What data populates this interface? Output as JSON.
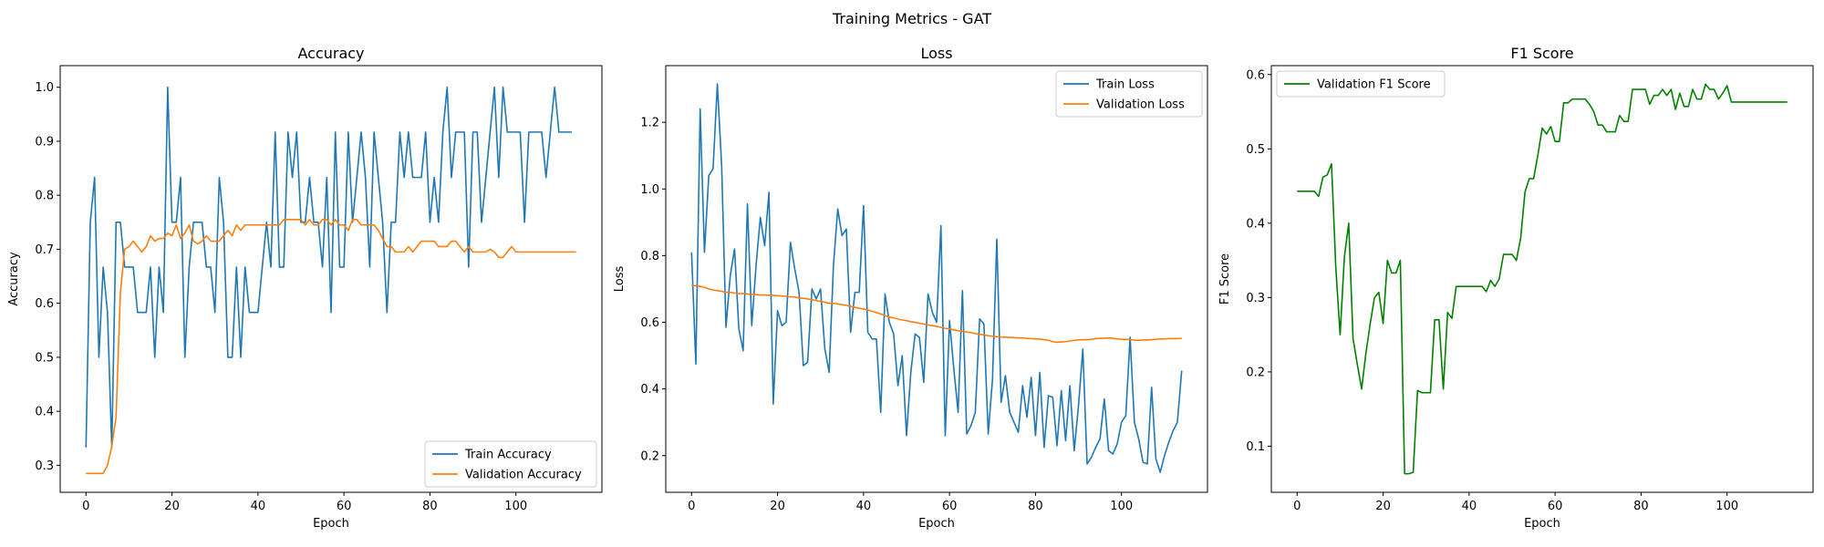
{
  "figure": {
    "suptitle": "Training Metrics - GAT"
  },
  "chart_data": [
    {
      "type": "line",
      "title": "Accuracy",
      "xlabel": "Epoch",
      "ylabel": "Accuracy",
      "xlim": [
        -6,
        120
      ],
      "ylim": [
        0.25,
        1.04
      ],
      "xticks": [
        0,
        20,
        40,
        60,
        80,
        100
      ],
      "yticks": [
        0.3,
        0.4,
        0.5,
        0.6,
        0.7,
        0.8,
        0.9,
        1.0
      ],
      "ytick_labels": [
        "0.3",
        "0.4",
        "0.5",
        "0.6",
        "0.7",
        "0.8",
        "0.9",
        "1.0"
      ],
      "legend": "lower-right",
      "grid": false,
      "series": [
        {
          "name": "Train Accuracy",
          "color": "#1f77b4",
          "values": [
            0.333,
            0.75,
            0.833,
            0.5,
            0.667,
            0.583,
            0.333,
            0.75,
            0.75,
            0.667,
            0.667,
            0.667,
            0.583,
            0.583,
            0.583,
            0.667,
            0.5,
            0.667,
            0.583,
            1.0,
            0.75,
            0.75,
            0.833,
            0.5,
            0.667,
            0.75,
            0.75,
            0.75,
            0.667,
            0.667,
            0.583,
            0.833,
            0.75,
            0.5,
            0.5,
            0.667,
            0.5,
            0.667,
            0.583,
            0.583,
            0.583,
            0.667,
            0.75,
            0.667,
            0.917,
            0.667,
            0.667,
            0.917,
            0.833,
            0.917,
            0.75,
            0.75,
            0.833,
            0.75,
            0.75,
            0.667,
            0.833,
            0.583,
            0.917,
            0.667,
            0.667,
            0.917,
            0.75,
            0.833,
            0.917,
            0.833,
            0.667,
            0.917,
            0.833,
            0.75,
            0.583,
            0.75,
            0.75,
            0.917,
            0.833,
            0.917,
            0.833,
            0.833,
            0.833,
            0.917,
            0.75,
            0.833,
            0.75,
            0.917,
            1.0,
            0.833,
            0.917,
            0.917,
            0.917,
            0.667,
            0.917,
            0.917,
            0.75,
            0.833,
            0.917,
            1.0,
            0.833,
            1.0,
            0.917,
            0.917,
            0.917,
            0.917,
            0.75,
            0.917,
            0.917,
            0.917,
            0.917,
            0.833,
            0.917,
            1.0,
            0.917,
            0.917,
            0.917,
            0.917
          ]
        },
        {
          "name": "Validation Accuracy",
          "color": "#ff7f0e",
          "values": [
            0.285,
            0.285,
            0.285,
            0.285,
            0.285,
            0.3,
            0.335,
            0.39,
            0.62,
            0.7,
            0.705,
            0.715,
            0.705,
            0.695,
            0.705,
            0.725,
            0.715,
            0.72,
            0.72,
            0.73,
            0.725,
            0.745,
            0.72,
            0.73,
            0.745,
            0.715,
            0.71,
            0.715,
            0.725,
            0.715,
            0.715,
            0.715,
            0.725,
            0.735,
            0.725,
            0.745,
            0.735,
            0.745,
            0.745,
            0.745,
            0.745,
            0.745,
            0.745,
            0.745,
            0.745,
            0.745,
            0.755,
            0.755,
            0.755,
            0.755,
            0.755,
            0.745,
            0.755,
            0.745,
            0.745,
            0.755,
            0.755,
            0.745,
            0.755,
            0.745,
            0.745,
            0.735,
            0.755,
            0.755,
            0.745,
            0.745,
            0.745,
            0.745,
            0.735,
            0.72,
            0.705,
            0.705,
            0.695,
            0.695,
            0.695,
            0.705,
            0.695,
            0.705,
            0.715,
            0.715,
            0.715,
            0.715,
            0.705,
            0.705,
            0.705,
            0.715,
            0.715,
            0.705,
            0.695,
            0.705,
            0.695,
            0.695,
            0.695,
            0.695,
            0.7,
            0.695,
            0.685,
            0.685,
            0.695,
            0.705,
            0.695,
            0.695,
            0.695,
            0.695,
            0.695,
            0.695,
            0.695,
            0.695,
            0.695,
            0.695,
            0.695,
            0.695,
            0.695,
            0.695,
            0.695
          ]
        }
      ]
    },
    {
      "type": "line",
      "title": "Loss",
      "xlabel": "Epoch",
      "ylabel": "Loss",
      "xlim": [
        -6,
        120
      ],
      "ylim": [
        0.09,
        1.37
      ],
      "xticks": [
        0,
        20,
        40,
        60,
        80,
        100
      ],
      "yticks": [
        0.2,
        0.4,
        0.6,
        0.8,
        1.0,
        1.2
      ],
      "ytick_labels": [
        "0.2",
        "0.4",
        "0.6",
        "0.8",
        "1.0",
        "1.2"
      ],
      "legend": "top-right",
      "grid": false,
      "series": [
        {
          "name": "Train Loss",
          "color": "#1f77b4",
          "values": [
            0.81,
            0.475,
            1.24,
            0.81,
            1.04,
            1.06,
            1.315,
            1.07,
            0.585,
            0.74,
            0.82,
            0.58,
            0.515,
            0.955,
            0.59,
            0.77,
            0.915,
            0.83,
            0.99,
            0.355,
            0.635,
            0.59,
            0.6,
            0.84,
            0.76,
            0.69,
            0.47,
            0.48,
            0.7,
            0.67,
            0.7,
            0.52,
            0.45,
            0.77,
            0.94,
            0.86,
            0.88,
            0.57,
            0.69,
            0.69,
            0.95,
            0.57,
            0.55,
            0.55,
            0.33,
            0.685,
            0.6,
            0.565,
            0.41,
            0.5,
            0.26,
            0.45,
            0.565,
            0.555,
            0.42,
            0.685,
            0.63,
            0.6,
            0.89,
            0.26,
            0.605,
            0.46,
            0.33,
            0.695,
            0.265,
            0.29,
            0.33,
            0.61,
            0.595,
            0.265,
            0.43,
            0.85,
            0.36,
            0.44,
            0.33,
            0.3,
            0.27,
            0.41,
            0.315,
            0.435,
            0.26,
            0.45,
            0.225,
            0.38,
            0.375,
            0.23,
            0.395,
            0.245,
            0.41,
            0.215,
            0.35,
            0.52,
            0.175,
            0.195,
            0.225,
            0.25,
            0.37,
            0.215,
            0.205,
            0.235,
            0.3,
            0.32,
            0.555,
            0.3,
            0.25,
            0.18,
            0.175,
            0.405,
            0.19,
            0.15,
            0.2,
            0.24,
            0.275,
            0.3,
            0.455
          ]
        },
        {
          "name": "Validation Loss",
          "color": "#ff7f0e",
          "values": [
            0.71,
            0.71,
            0.708,
            0.705,
            0.7,
            0.697,
            0.695,
            0.693,
            0.69,
            0.69,
            0.688,
            0.686,
            0.686,
            0.685,
            0.684,
            0.683,
            0.682,
            0.682,
            0.681,
            0.681,
            0.68,
            0.679,
            0.678,
            0.676,
            0.676,
            0.673,
            0.672,
            0.67,
            0.668,
            0.665,
            0.663,
            0.66,
            0.657,
            0.657,
            0.655,
            0.653,
            0.651,
            0.648,
            0.645,
            0.642,
            0.64,
            0.637,
            0.633,
            0.629,
            0.625,
            0.62,
            0.616,
            0.613,
            0.61,
            0.607,
            0.605,
            0.602,
            0.6,
            0.597,
            0.595,
            0.592,
            0.59,
            0.588,
            0.585,
            0.582,
            0.58,
            0.577,
            0.575,
            0.573,
            0.571,
            0.569,
            0.566,
            0.564,
            0.562,
            0.56,
            0.558,
            0.557,
            0.556,
            0.555,
            0.555,
            0.554,
            0.553,
            0.553,
            0.552,
            0.551,
            0.55,
            0.55,
            0.548,
            0.546,
            0.542,
            0.54,
            0.541,
            0.542,
            0.544,
            0.546,
            0.547,
            0.548,
            0.548,
            0.549,
            0.551,
            0.552,
            0.552,
            0.553,
            0.552,
            0.55,
            0.549,
            0.549,
            0.548,
            0.546,
            0.546,
            0.547,
            0.547,
            0.548,
            0.549,
            0.55,
            0.55,
            0.551,
            0.551,
            0.551,
            0.552
          ]
        }
      ]
    },
    {
      "type": "line",
      "title": "F1 Score",
      "xlabel": "Epoch",
      "ylabel": "F1 Score",
      "xlim": [
        -6,
        120
      ],
      "ylim": [
        0.038,
        0.612
      ],
      "xticks": [
        0,
        20,
        40,
        60,
        80,
        100
      ],
      "yticks": [
        0.1,
        0.2,
        0.3,
        0.4,
        0.5,
        0.6
      ],
      "ytick_labels": [
        "0.1",
        "0.2",
        "0.3",
        "0.4",
        "0.5",
        "0.6"
      ],
      "legend": "top-left",
      "grid": false,
      "series": [
        {
          "name": "Validation F1 Score",
          "color": "#008000",
          "values": [
            0.443,
            0.443,
            0.443,
            0.443,
            0.443,
            0.436,
            0.462,
            0.465,
            0.48,
            0.34,
            0.25,
            0.355,
            0.4,
            0.245,
            0.21,
            0.177,
            0.225,
            0.265,
            0.3,
            0.307,
            0.265,
            0.35,
            0.333,
            0.333,
            0.35,
            0.063,
            0.063,
            0.065,
            0.175,
            0.172,
            0.172,
            0.172,
            0.27,
            0.27,
            0.177,
            0.28,
            0.272,
            0.315,
            0.315,
            0.315,
            0.315,
            0.315,
            0.315,
            0.315,
            0.308,
            0.323,
            0.315,
            0.325,
            0.358,
            0.358,
            0.358,
            0.35,
            0.38,
            0.442,
            0.46,
            0.46,
            0.492,
            0.528,
            0.52,
            0.53,
            0.51,
            0.51,
            0.562,
            0.562,
            0.567,
            0.567,
            0.567,
            0.567,
            0.56,
            0.55,
            0.532,
            0.532,
            0.523,
            0.523,
            0.523,
            0.545,
            0.537,
            0.537,
            0.58,
            0.58,
            0.58,
            0.58,
            0.56,
            0.572,
            0.572,
            0.58,
            0.572,
            0.58,
            0.553,
            0.575,
            0.557,
            0.557,
            0.58,
            0.567,
            0.567,
            0.587,
            0.58,
            0.58,
            0.567,
            0.575,
            0.585,
            0.563,
            0.563,
            0.563,
            0.563,
            0.563,
            0.563,
            0.563,
            0.563,
            0.563,
            0.563,
            0.563,
            0.563,
            0.563,
            0.563
          ]
        }
      ]
    }
  ]
}
